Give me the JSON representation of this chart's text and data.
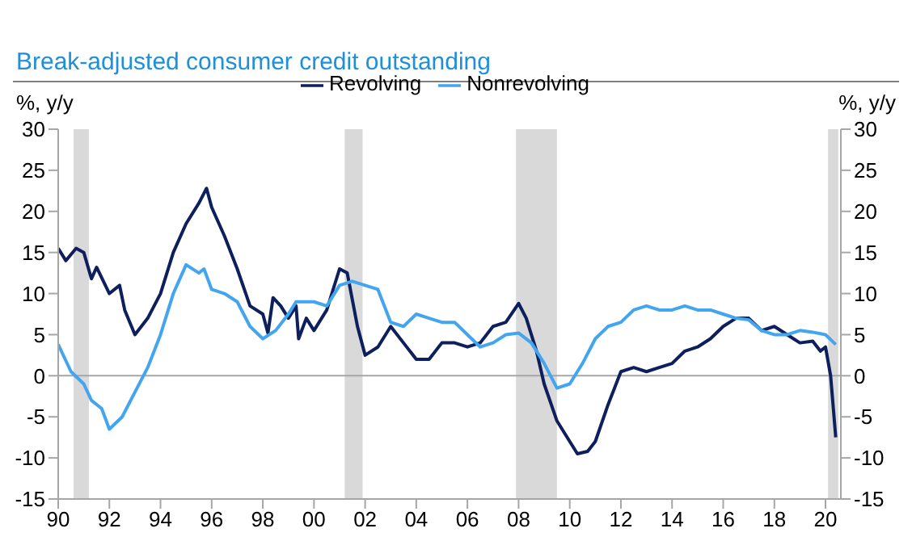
{
  "chart_data": {
    "type": "line",
    "title": "Break-adjusted consumer credit outstanding",
    "ylabel": "%, y/y",
    "y2label": "%, y/y",
    "legend": "top",
    "grid": false,
    "xlim": [
      1990,
      2020.6
    ],
    "xticks": [
      {
        "value": 1990,
        "label": "90"
      },
      {
        "value": 1992,
        "label": "92"
      },
      {
        "value": 1994,
        "label": "94"
      },
      {
        "value": 1996,
        "label": "96"
      },
      {
        "value": 1998,
        "label": "98"
      },
      {
        "value": 2000,
        "label": "00"
      },
      {
        "value": 2002,
        "label": "02"
      },
      {
        "value": 2004,
        "label": "04"
      },
      {
        "value": 2006,
        "label": "06"
      },
      {
        "value": 2008,
        "label": "08"
      },
      {
        "value": 2010,
        "label": "10"
      },
      {
        "value": 2012,
        "label": "12"
      },
      {
        "value": 2014,
        "label": "14"
      },
      {
        "value": 2016,
        "label": "16"
      },
      {
        "value": 2018,
        "label": "18"
      },
      {
        "value": 2020,
        "label": "20"
      }
    ],
    "ylim": [
      -15,
      30
    ],
    "yticks": [
      -15,
      -10,
      -5,
      0,
      5,
      10,
      15,
      20,
      25,
      30
    ],
    "y2lim": [
      -15,
      30
    ],
    "y2ticks": [
      -15,
      -10,
      -5,
      0,
      5,
      10,
      15,
      20,
      25,
      30
    ],
    "ref_lines": [
      {
        "axis": "y",
        "value": 0,
        "color": "#a6a6a6"
      }
    ],
    "bands": [
      {
        "axis": "x",
        "from": 1990.6,
        "to": 1991.2,
        "color": "#d9d9d9"
      },
      {
        "axis": "x",
        "from": 2001.2,
        "to": 2001.9,
        "color": "#d9d9d9"
      },
      {
        "axis": "x",
        "from": 2007.9,
        "to": 2009.5,
        "color": "#d9d9d9"
      },
      {
        "axis": "x",
        "from": 2020.1,
        "to": 2020.5,
        "color": "#d9d9d9"
      }
    ],
    "series": [
      {
        "name": "Revolving",
        "color": "#0d1f5c",
        "x": [
          1990.0,
          1990.3,
          1990.7,
          1991.0,
          1991.3,
          1991.5,
          1992.0,
          1992.4,
          1992.6,
          1993.0,
          1993.5,
          1994.0,
          1994.5,
          1995.0,
          1995.5,
          1995.8,
          1996.0,
          1996.5,
          1997.0,
          1997.5,
          1998.0,
          1998.2,
          1998.4,
          1998.7,
          1999.0,
          1999.3,
          1999.4,
          1999.7,
          2000.0,
          2000.5,
          2001.0,
          2001.3,
          2001.7,
          2002.0,
          2002.5,
          2003.0,
          2003.5,
          2004.0,
          2004.5,
          2005.0,
          2005.5,
          2006.0,
          2006.5,
          2007.0,
          2007.5,
          2008.0,
          2008.3,
          2008.7,
          2009.0,
          2009.5,
          2010.0,
          2010.3,
          2010.7,
          2011.0,
          2011.5,
          2012.0,
          2012.5,
          2013.0,
          2013.5,
          2014.0,
          2014.5,
          2015.0,
          2015.5,
          2016.0,
          2016.5,
          2017.0,
          2017.5,
          2018.0,
          2018.5,
          2019.0,
          2019.5,
          2019.8,
          2020.0,
          2020.2,
          2020.4
        ],
        "values": [
          15.5,
          14,
          15.5,
          15,
          11.8,
          13.2,
          10,
          11,
          8,
          5,
          7,
          10,
          15,
          18.5,
          21,
          22.8,
          20.5,
          17,
          13,
          8.5,
          7.5,
          5.2,
          9.5,
          8.5,
          7,
          8.5,
          4.5,
          7,
          5.5,
          8,
          13,
          12.5,
          6,
          2.5,
          3.5,
          6,
          4,
          2,
          2,
          4,
          4,
          3.5,
          4,
          6,
          6.5,
          8.8,
          7,
          3,
          -1,
          -5.5,
          -8,
          -9.5,
          -9.2,
          -8,
          -3.5,
          0.5,
          1,
          0.5,
          1,
          1.5,
          3,
          3.5,
          4.5,
          6,
          7,
          7,
          5.5,
          6,
          5,
          4,
          4.2,
          3,
          3.5,
          0,
          -7.5
        ]
      },
      {
        "name": "Nonrevolving",
        "color": "#42a5ee",
        "x": [
          1990.0,
          1990.5,
          1991.0,
          1991.3,
          1991.7,
          1992.0,
          1992.5,
          1993.0,
          1993.5,
          1994.0,
          1994.5,
          1995.0,
          1995.5,
          1995.7,
          1996.0,
          1996.5,
          1997.0,
          1997.5,
          1998.0,
          1998.5,
          1999.0,
          1999.3,
          2000.0,
          2000.5,
          2001.0,
          2001.5,
          2002.0,
          2002.5,
          2003.0,
          2003.5,
          2004.0,
          2004.5,
          2005.0,
          2005.5,
          2006.0,
          2006.5,
          2007.0,
          2007.5,
          2008.0,
          2008.5,
          2009.0,
          2009.5,
          2010.0,
          2010.5,
          2011.0,
          2011.5,
          2012.0,
          2012.5,
          2013.0,
          2013.5,
          2014.0,
          2014.5,
          2015.0,
          2015.5,
          2016.0,
          2016.5,
          2017.0,
          2017.5,
          2018.0,
          2018.5,
          2019.0,
          2019.5,
          2020.0,
          2020.4
        ],
        "values": [
          3.8,
          0.5,
          -1,
          -3,
          -4,
          -6.5,
          -5,
          -2,
          1,
          5,
          10,
          13.5,
          12.5,
          13,
          10.5,
          10,
          9,
          6,
          4.5,
          5.5,
          7.5,
          9,
          9,
          8.5,
          11,
          11.5,
          11,
          10.5,
          6.5,
          6,
          7.5,
          7,
          6.5,
          6.5,
          5,
          3.5,
          4,
          5,
          5.2,
          4,
          1.5,
          -1.5,
          -1,
          1.5,
          4.5,
          6,
          6.5,
          8,
          8.5,
          8,
          8,
          8.5,
          8,
          8,
          7.5,
          7,
          6.8,
          5.5,
          5,
          5,
          5.5,
          5.3,
          5,
          3.8
        ]
      }
    ]
  }
}
